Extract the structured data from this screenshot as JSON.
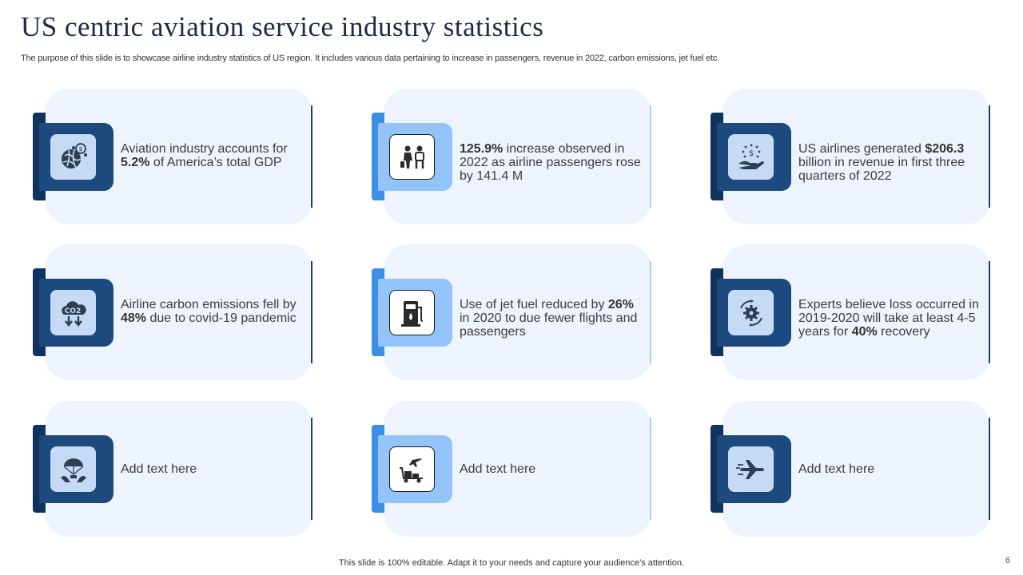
{
  "slide": {
    "title": "US centric aviation service industry statistics",
    "subtitle": "The purpose of this slide is to showcase airline industry statistics of US region. It includes various data pertaining to increase in passengers, revenue in 2022, carbon emissions, jet fuel etc.",
    "footer": "This slide is 100% editable. Adapt it to your needs and capture your audience’s attention.",
    "page_number": "6"
  },
  "cards": [
    {
      "icon": "globe-money-icon",
      "parts": [
        "Aviation industry accounts for ",
        "5.2%",
        " of America’s total GDP"
      ]
    },
    {
      "icon": "passengers-icon",
      "parts": [
        "",
        "125.9%",
        " increase observed in 2022 as airline passengers rose by 141.4 M"
      ]
    },
    {
      "icon": "revenue-hand-icon",
      "parts": [
        "US airlines generated ",
        "$206.3",
        " billion in revenue  in first three quarters of 2022"
      ]
    },
    {
      "icon": "co2-emissions-icon",
      "parts": [
        "Airline carbon emissions fell by ",
        "48%",
        " due to covid-19 pandemic"
      ]
    },
    {
      "icon": "fuel-pump-icon",
      "parts": [
        "Use of jet fuel reduced by ",
        "26%",
        " in 2020 to due fewer flights and passengers"
      ]
    },
    {
      "icon": "gear-recovery-icon",
      "parts": [
        "Experts believe loss occurred in 2019-2020 will take at least 4-5 years for ",
        "40%",
        " recovery"
      ]
    },
    {
      "icon": "airplane-parachute-icon",
      "parts": [
        "Add text here"
      ]
    },
    {
      "icon": "cargo-cart-icon",
      "parts": [
        "Add text here"
      ]
    },
    {
      "icon": "airplane-icon",
      "parts": [
        "Add text here"
      ]
    }
  ]
}
